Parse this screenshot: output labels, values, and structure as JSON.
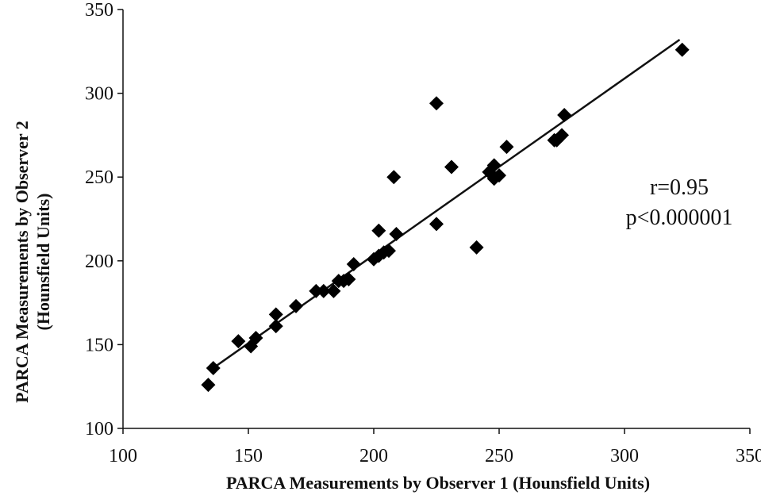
{
  "chart_data": {
    "type": "scatter",
    "title": "",
    "xlabel": "PARCA Measurements by Observer 1 (Hounsfield Units)",
    "ylabel_lines": [
      "PARCA Measurements by Observer 2",
      "(Hounsfield Units)"
    ],
    "xlim": [
      100,
      350
    ],
    "ylim": [
      100,
      350
    ],
    "x_ticks": [
      "100",
      "150",
      "200",
      "250",
      "300",
      "350"
    ],
    "y_ticks": [
      "100",
      "150",
      "200",
      "250",
      "300",
      "350"
    ],
    "grid": false,
    "legend": "none",
    "marker": "diamond",
    "marker_color": "#000000",
    "points": [
      {
        "x": 134,
        "y": 126
      },
      {
        "x": 136,
        "y": 136
      },
      {
        "x": 146,
        "y": 152
      },
      {
        "x": 151,
        "y": 149
      },
      {
        "x": 153,
        "y": 154
      },
      {
        "x": 161,
        "y": 161
      },
      {
        "x": 161,
        "y": 168
      },
      {
        "x": 169,
        "y": 173
      },
      {
        "x": 177,
        "y": 182
      },
      {
        "x": 180,
        "y": 182
      },
      {
        "x": 184,
        "y": 182
      },
      {
        "x": 186,
        "y": 188
      },
      {
        "x": 188,
        "y": 188
      },
      {
        "x": 190,
        "y": 189
      },
      {
        "x": 192,
        "y": 198
      },
      {
        "x": 200,
        "y": 201
      },
      {
        "x": 202,
        "y": 203
      },
      {
        "x": 202,
        "y": 218
      },
      {
        "x": 204,
        "y": 205
      },
      {
        "x": 206,
        "y": 206
      },
      {
        "x": 208,
        "y": 250
      },
      {
        "x": 209,
        "y": 216
      },
      {
        "x": 225,
        "y": 294
      },
      {
        "x": 225,
        "y": 222
      },
      {
        "x": 231,
        "y": 256
      },
      {
        "x": 241,
        "y": 208
      },
      {
        "x": 246,
        "y": 253
      },
      {
        "x": 248,
        "y": 257
      },
      {
        "x": 248,
        "y": 249
      },
      {
        "x": 250,
        "y": 251
      },
      {
        "x": 253,
        "y": 268
      },
      {
        "x": 272,
        "y": 272
      },
      {
        "x": 273,
        "y": 272
      },
      {
        "x": 275,
        "y": 275
      },
      {
        "x": 276,
        "y": 287
      },
      {
        "x": 323,
        "y": 326
      }
    ],
    "fit_line": {
      "x": [
        135,
        322
      ],
      "y": [
        135,
        332
      ]
    },
    "annotations": [
      "r=0.95",
      "p<0.000001"
    ]
  }
}
